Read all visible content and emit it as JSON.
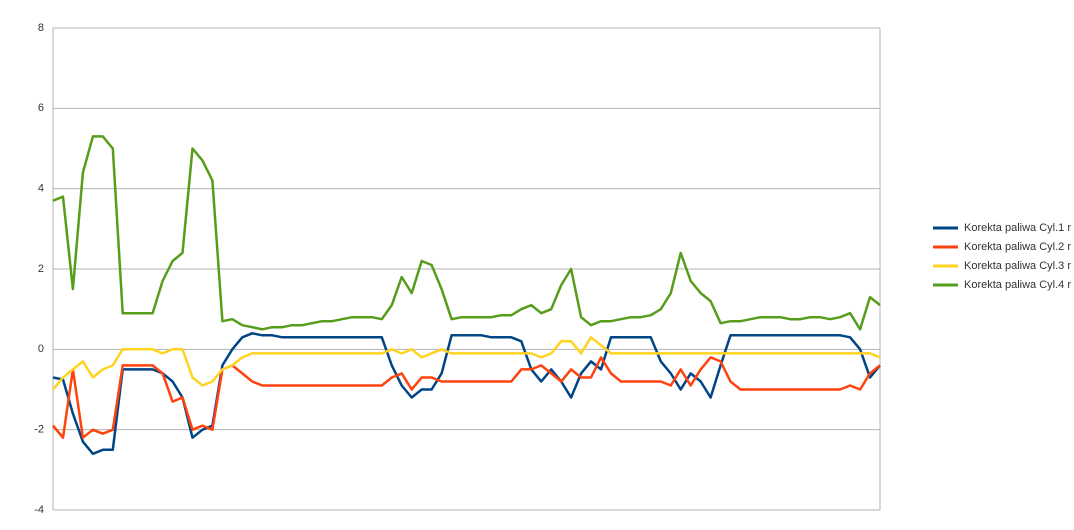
{
  "chart_data": {
    "type": "line",
    "ylim": [
      -4,
      8
    ],
    "yticks": [
      -4,
      -2,
      0,
      2,
      4,
      6,
      8
    ],
    "grid": true,
    "legend": "right",
    "series": [
      {
        "name": "Korekta paliwa Cyl.1 r",
        "color": "#004586",
        "values": [
          -0.7,
          -0.75,
          -1.6,
          -2.3,
          -2.6,
          -2.5,
          -2.5,
          -0.5,
          -0.5,
          -0.5,
          -0.5,
          -0.6,
          -0.8,
          -1.2,
          -2.2,
          -2.0,
          -1.9,
          -0.4,
          0.0,
          0.3,
          0.4,
          0.35,
          0.35,
          0.3,
          0.3,
          0.3,
          0.3,
          0.3,
          0.3,
          0.3,
          0.3,
          0.3,
          0.3,
          0.3,
          -0.4,
          -0.9,
          -1.2,
          -1.0,
          -1.0,
          -0.6,
          0.35,
          0.35,
          0.35,
          0.35,
          0.3,
          0.3,
          0.3,
          0.2,
          -0.5,
          -0.8,
          -0.5,
          -0.8,
          -1.2,
          -0.6,
          -0.3,
          -0.5,
          0.3,
          0.3,
          0.3,
          0.3,
          0.3,
          -0.3,
          -0.6,
          -1.0,
          -0.6,
          -0.8,
          -1.2,
          -0.4,
          0.35,
          0.35,
          0.35,
          0.35,
          0.35,
          0.35,
          0.35,
          0.35,
          0.35,
          0.35,
          0.35,
          0.35,
          0.3,
          0.0,
          -0.7,
          -0.4
        ]
      },
      {
        "name": "Korekta paliwa Cyl.2 r",
        "color": "#ff420e",
        "values": [
          -1.9,
          -2.2,
          -0.5,
          -2.2,
          -2.0,
          -2.1,
          -2.0,
          -0.4,
          -0.4,
          -0.4,
          -0.4,
          -0.6,
          -1.3,
          -1.2,
          -2.0,
          -1.9,
          -2.0,
          -0.5,
          -0.4,
          -0.6,
          -0.8,
          -0.9,
          -0.9,
          -0.9,
          -0.9,
          -0.9,
          -0.9,
          -0.9,
          -0.9,
          -0.9,
          -0.9,
          -0.9,
          -0.9,
          -0.9,
          -0.7,
          -0.6,
          -1.0,
          -0.7,
          -0.7,
          -0.8,
          -0.8,
          -0.8,
          -0.8,
          -0.8,
          -0.8,
          -0.8,
          -0.8,
          -0.5,
          -0.5,
          -0.4,
          -0.6,
          -0.8,
          -0.5,
          -0.7,
          -0.7,
          -0.2,
          -0.6,
          -0.8,
          -0.8,
          -0.8,
          -0.8,
          -0.8,
          -0.9,
          -0.5,
          -0.9,
          -0.5,
          -0.2,
          -0.3,
          -0.8,
          -1.0,
          -1.0,
          -1.0,
          -1.0,
          -1.0,
          -1.0,
          -1.0,
          -1.0,
          -1.0,
          -1.0,
          -1.0,
          -0.9,
          -1.0,
          -0.6,
          -0.4
        ]
      },
      {
        "name": "Korekta paliwa Cyl.3 r",
        "color": "#ffd320",
        "values": [
          -1.0,
          -0.7,
          -0.5,
          -0.3,
          -0.7,
          -0.5,
          -0.4,
          0.0,
          0.0,
          0.0,
          0.0,
          -0.1,
          0.0,
          0.0,
          -0.7,
          -0.9,
          -0.8,
          -0.5,
          -0.4,
          -0.2,
          -0.1,
          -0.1,
          -0.1,
          -0.1,
          -0.1,
          -0.1,
          -0.1,
          -0.1,
          -0.1,
          -0.1,
          -0.1,
          -0.1,
          -0.1,
          -0.1,
          0.0,
          -0.1,
          0.0,
          -0.2,
          -0.1,
          0.0,
          -0.1,
          -0.1,
          -0.1,
          -0.1,
          -0.1,
          -0.1,
          -0.1,
          -0.1,
          -0.1,
          -0.2,
          -0.1,
          0.2,
          0.2,
          -0.1,
          0.3,
          0.1,
          -0.1,
          -0.1,
          -0.1,
          -0.1,
          -0.1,
          -0.1,
          -0.1,
          -0.1,
          -0.1,
          -0.1,
          -0.1,
          -0.1,
          -0.1,
          -0.1,
          -0.1,
          -0.1,
          -0.1,
          -0.1,
          -0.1,
          -0.1,
          -0.1,
          -0.1,
          -0.1,
          -0.1,
          -0.1,
          -0.1,
          -0.1,
          -0.2
        ]
      },
      {
        "name": "Korekta paliwa Cyl.4 r",
        "color": "#579d1c",
        "values": [
          3.7,
          3.8,
          1.5,
          4.4,
          5.3,
          5.3,
          5.0,
          0.9,
          0.9,
          0.9,
          0.9,
          1.7,
          2.2,
          2.4,
          5.0,
          4.7,
          4.2,
          0.7,
          0.75,
          0.6,
          0.55,
          0.5,
          0.55,
          0.55,
          0.6,
          0.6,
          0.65,
          0.7,
          0.7,
          0.75,
          0.8,
          0.8,
          0.8,
          0.75,
          1.1,
          1.8,
          1.4,
          2.2,
          2.1,
          1.5,
          0.75,
          0.8,
          0.8,
          0.8,
          0.8,
          0.85,
          0.85,
          1.0,
          1.1,
          0.9,
          1.0,
          1.6,
          2.0,
          0.8,
          0.6,
          0.7,
          0.7,
          0.75,
          0.8,
          0.8,
          0.85,
          1.0,
          1.4,
          2.4,
          1.7,
          1.4,
          1.2,
          0.65,
          0.7,
          0.7,
          0.75,
          0.8,
          0.8,
          0.8,
          0.75,
          0.75,
          0.8,
          0.8,
          0.75,
          0.8,
          0.9,
          0.5,
          1.3,
          1.1
        ]
      }
    ]
  }
}
